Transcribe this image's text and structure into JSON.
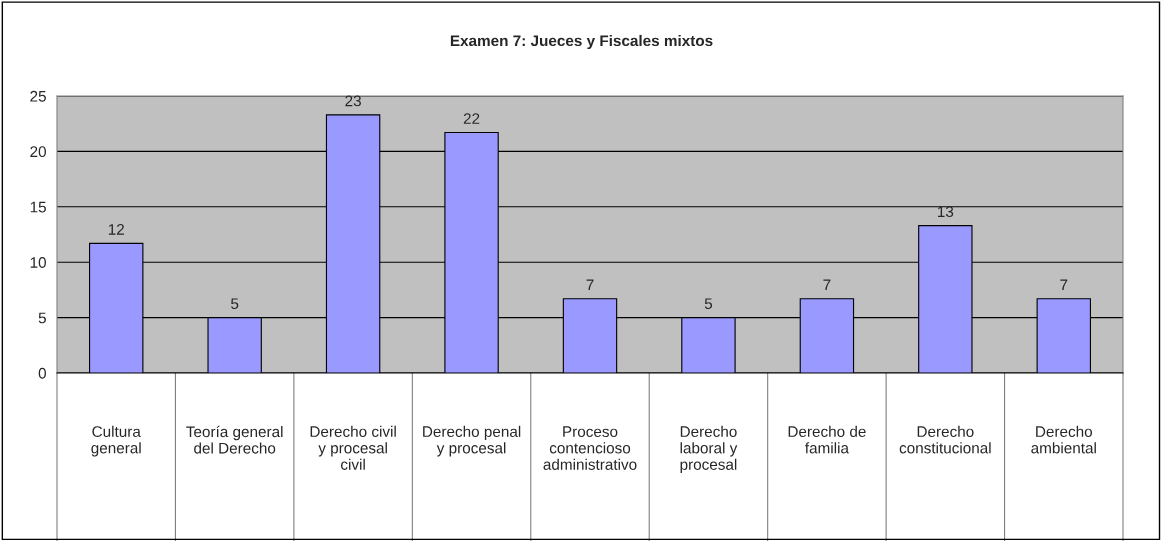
{
  "chart_data": {
    "type": "bar",
    "title": "Examen 7: Jueces y Fiscales mixtos",
    "categories": [
      "Cultura general",
      "Teoría general del Derecho",
      "Derecho civil y procesal civil",
      "Derecho penal y procesal",
      "Proceso contencioso administrativo",
      "Derecho laboral y procesal",
      "Derecho de familia",
      "Derecho constitucional",
      "Derecho ambiental"
    ],
    "values": [
      11.7,
      5,
      23.3,
      21.7,
      6.7,
      5,
      6.7,
      13.3,
      6.7
    ],
    "value_labels": [
      "12",
      "5",
      "23",
      "22",
      "7",
      "5",
      "7",
      "13",
      "7"
    ],
    "color": "#9999ff",
    "ylim": [
      0,
      25
    ],
    "yticks": [
      0,
      5,
      10,
      15,
      20,
      25
    ],
    "grid": "y",
    "legend": false
  }
}
